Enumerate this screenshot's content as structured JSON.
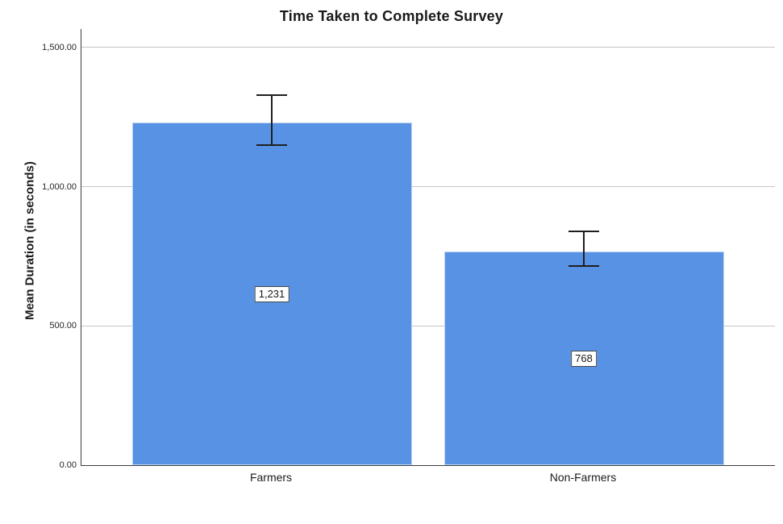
{
  "chart_data": {
    "type": "bar",
    "title": "Time Taken to Complete Survey",
    "categories": [
      "Farmers",
      "Non-Farmers"
    ],
    "values": [
      1231,
      768
    ],
    "value_labels": [
      "1,231",
      "768"
    ],
    "error_upper": [
      1328,
      838
    ],
    "error_lower": [
      1148,
      713
    ],
    "xlabel": "",
    "ylabel": "Mean Duration (in seconds)",
    "ylim": [
      0,
      1500
    ],
    "yticks": [
      0,
      500,
      1000,
      1500
    ],
    "ytick_labels": [
      "0.00",
      "500.00",
      "1,000.00",
      "1,500.00"
    ],
    "grid": true,
    "legend": false,
    "bar_color": "#5792E4",
    "bar_border_color": "#BCD3F2",
    "errorbar_color": "#1f1f1f",
    "gridline_color": "#c6c6c6",
    "axis_color": "#3c3c3c",
    "label_box_bg": "#ffffff",
    "label_box_border": "#4a4a4a"
  }
}
